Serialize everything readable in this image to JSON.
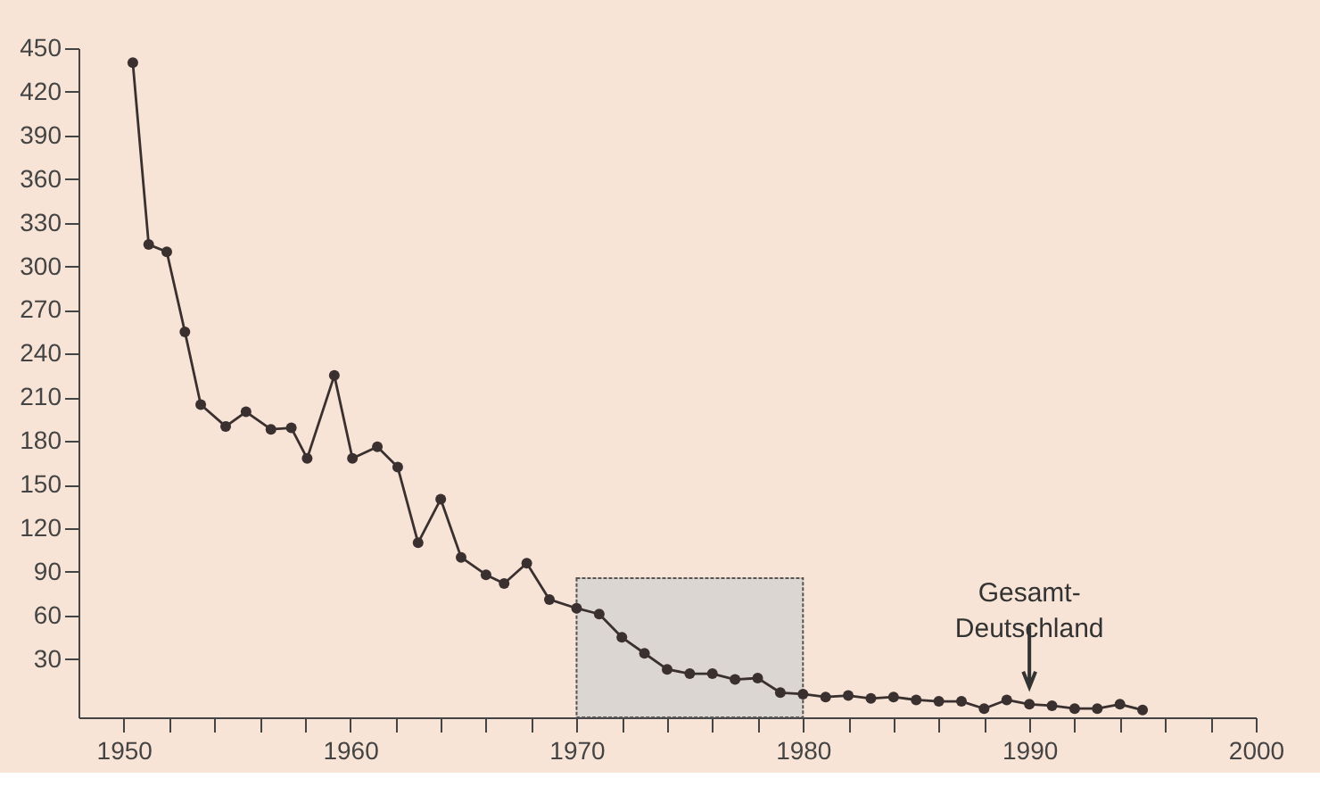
{
  "chart_data": {
    "type": "line",
    "x": [
      1950.4,
      1951.1,
      1951.9,
      1952.7,
      1953.4,
      1954.5,
      1955.4,
      1956.5,
      1957.4,
      1958.1,
      1959.3,
      1960.1,
      1961.2,
      1962.1,
      1963.0,
      1964.0,
      1964.9,
      1966.0,
      1966.8,
      1967.8,
      1968.8,
      1970,
      1971,
      1972,
      1973,
      1974,
      1975,
      1976,
      1977,
      1978,
      1979,
      1980,
      1981,
      1982,
      1983,
      1984,
      1985,
      1986,
      1987,
      1988,
      1989,
      1990,
      1991,
      1992,
      1993,
      1994,
      1995
    ],
    "series": [
      {
        "color": "#3a3030",
        "values": [
          440,
          315,
          310,
          255,
          205,
          190,
          200,
          188,
          189,
          168,
          225,
          168,
          176,
          162,
          110,
          140,
          100,
          88,
          82,
          96,
          71,
          65,
          61,
          45,
          34,
          23,
          20,
          20,
          16,
          17,
          7,
          6,
          4,
          5,
          3,
          4,
          2,
          1,
          1,
          -4,
          2,
          -1,
          -2,
          -4,
          -4,
          -1,
          -5
        ]
      }
    ],
    "marker": "circle",
    "line_style": "solid",
    "xlim": [
      1948,
      2000
    ],
    "xticks": [
      1950,
      {
        "value": 1952,
        "label": null
      },
      {
        "value": 1954,
        "label": null
      },
      {
        "value": 1956,
        "label": null
      },
      {
        "value": 1958,
        "label": null
      },
      1960,
      {
        "value": 1962,
        "label": null
      },
      {
        "value": 1964,
        "label": null
      },
      {
        "value": 1966,
        "label": null
      },
      {
        "value": 1968,
        "label": null
      },
      1970,
      {
        "value": 1972,
        "label": null
      },
      {
        "value": 1974,
        "label": null
      },
      {
        "value": 1976,
        "label": null
      },
      {
        "value": 1978,
        "label": null
      },
      1980,
      {
        "value": 1982,
        "label": null
      },
      {
        "value": 1984,
        "label": null
      },
      {
        "value": 1986,
        "label": null
      },
      {
        "value": 1988,
        "label": null
      },
      1990,
      {
        "value": 1992,
        "label": null
      },
      {
        "value": 1994,
        "label": null
      },
      {
        "value": 1996,
        "label": null
      },
      {
        "value": 1998,
        "label": null
      },
      2000
    ],
    "ylim": [
      -10,
      450
    ],
    "yticks": [
      30,
      60,
      90,
      120,
      150,
      180,
      210,
      240,
      270,
      300,
      330,
      360,
      390,
      420,
      450
    ],
    "grid": false,
    "legend": false,
    "bands": [
      {
        "axis": "x",
        "from": 1970,
        "to": 1980,
        "color": "#dcd6d2"
      }
    ],
    "annotations": [
      {
        "text": "Gesamt-\nDeutschland",
        "x": 1990,
        "y": 5
      }
    ]
  }
}
